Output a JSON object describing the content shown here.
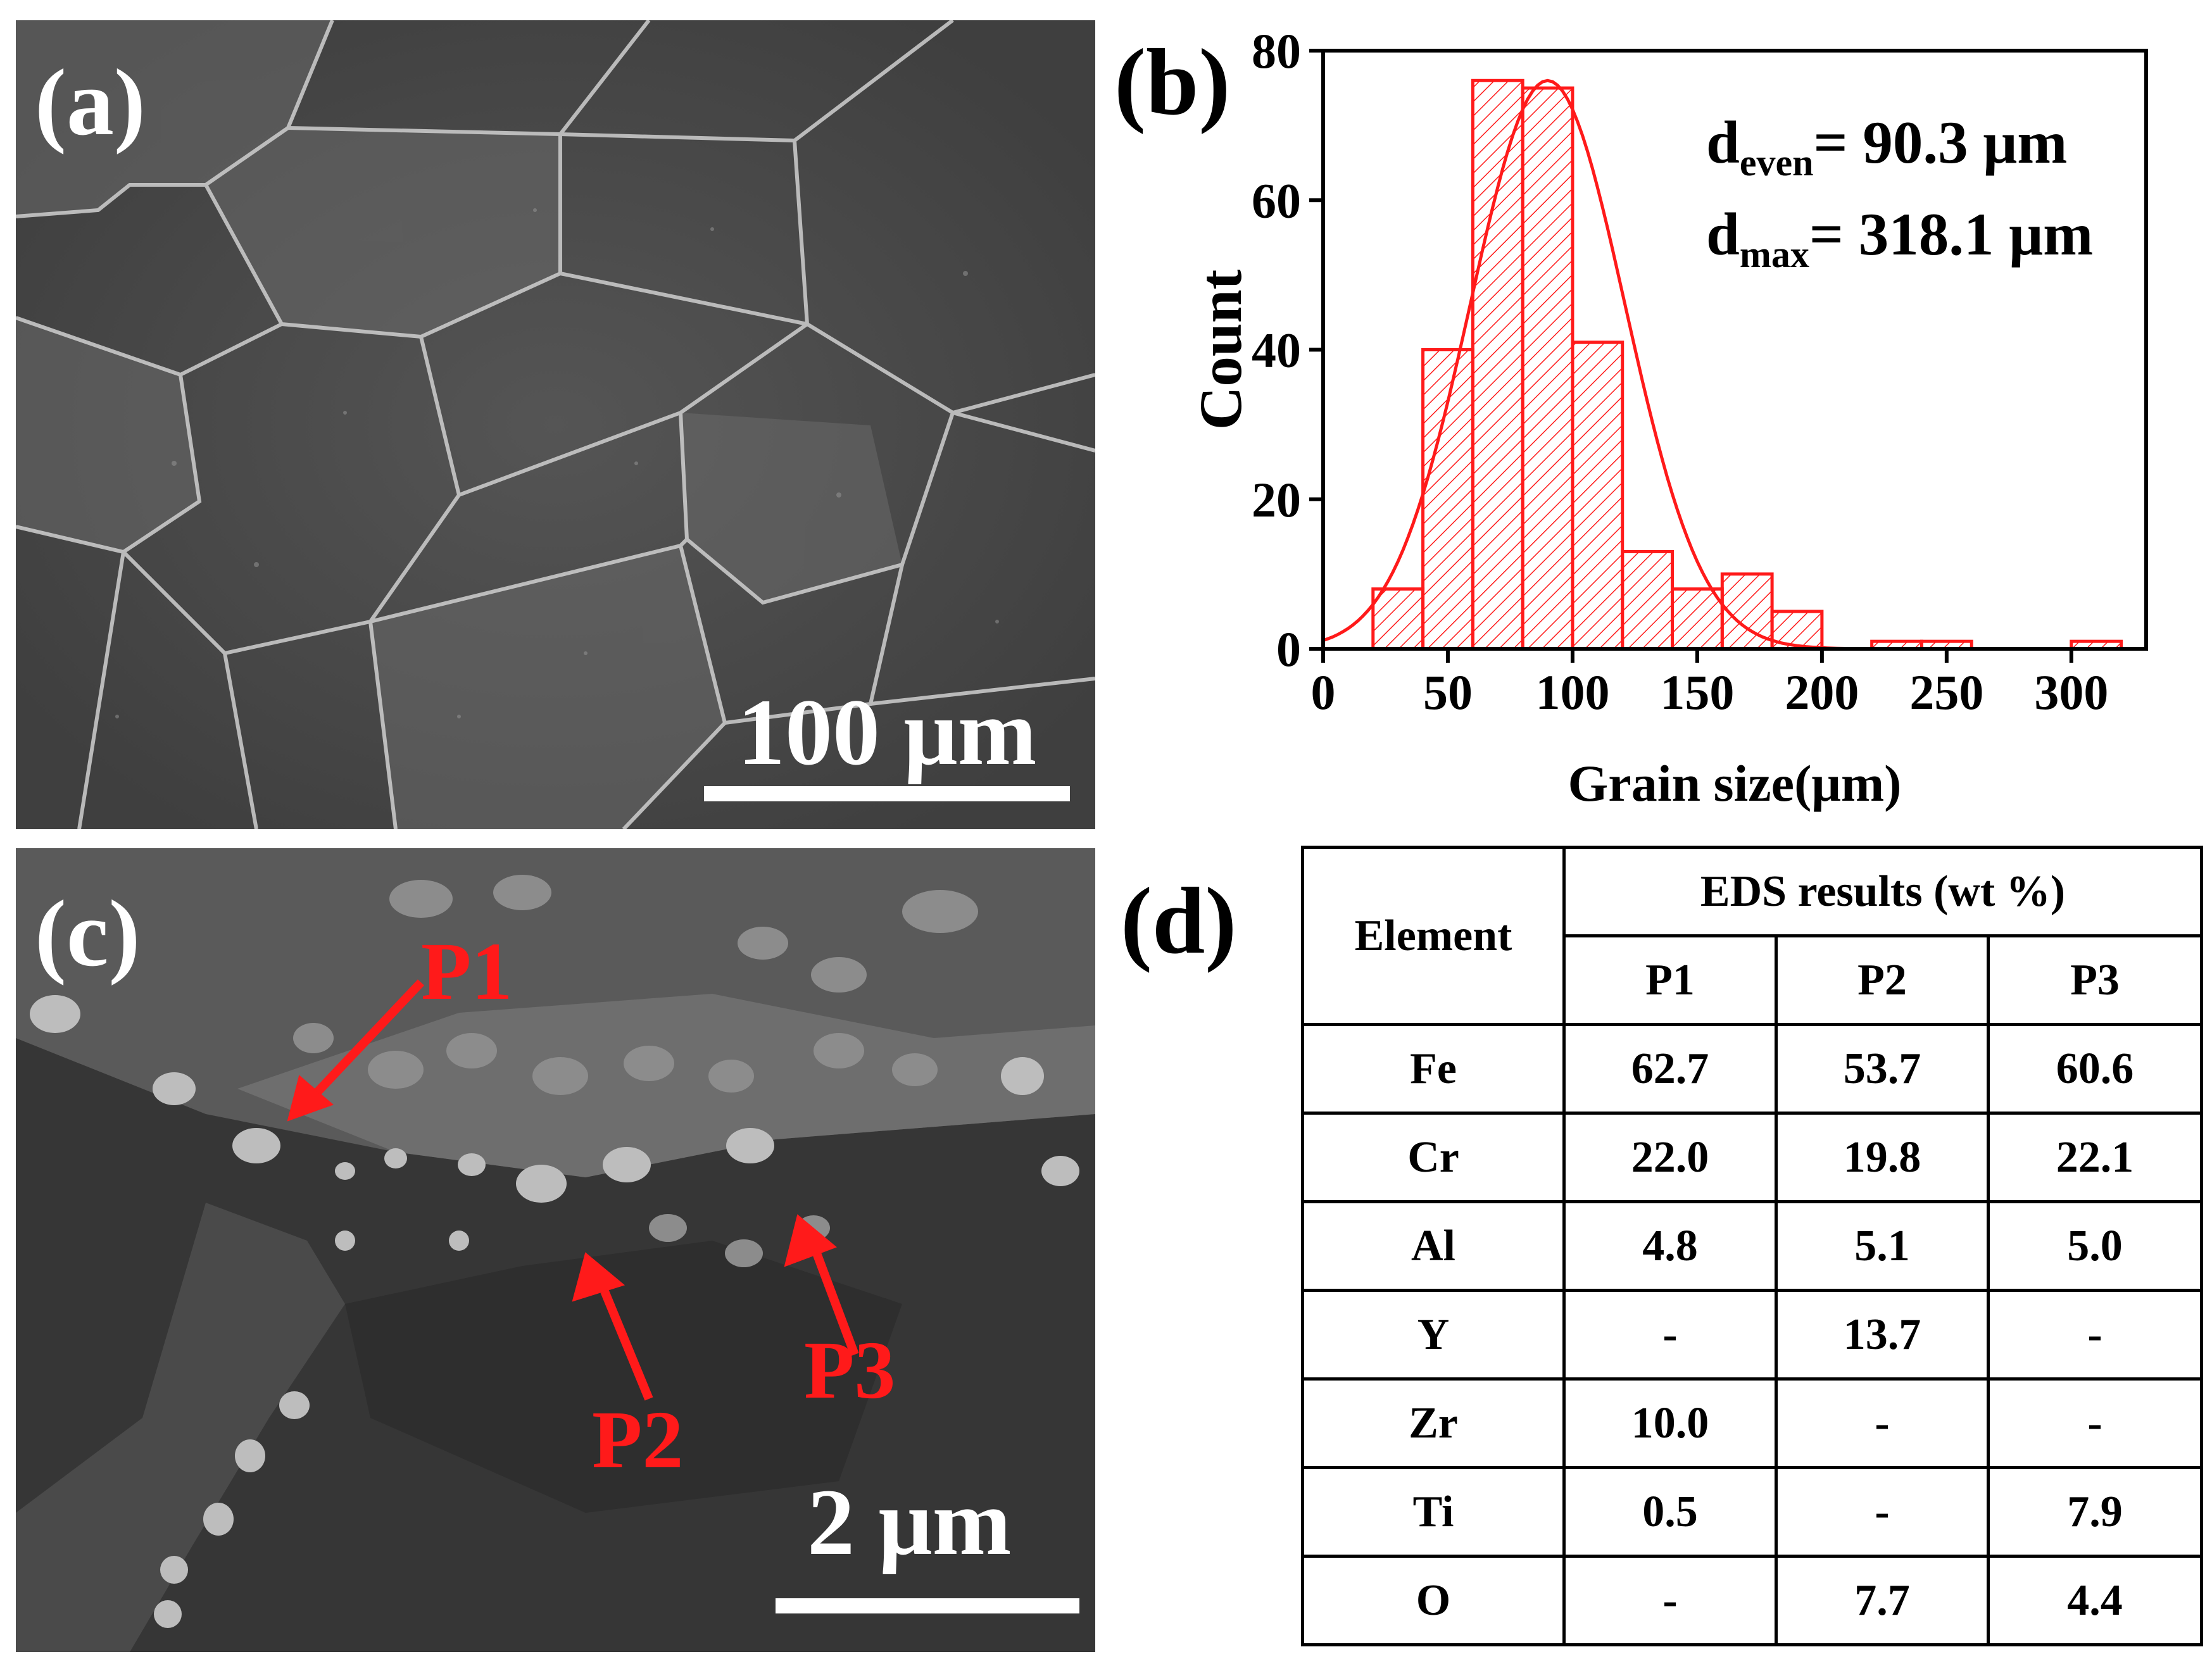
{
  "panels": {
    "a": {
      "label": "(a)",
      "scale_label": "100 μm"
    },
    "b": {
      "label": "(b)"
    },
    "c": {
      "label": "(c)",
      "scale_label": "2 μm",
      "markers": [
        "P1",
        "P2",
        "P3"
      ]
    },
    "d": {
      "label": "(d)"
    }
  },
  "annotation": {
    "d_even_base": "d",
    "d_even_sub": "even",
    "d_even_value": "= 90.3 μm",
    "d_max_base": "d",
    "d_max_sub": "max",
    "d_max_value": "= 318.1 μm"
  },
  "chart_data": {
    "type": "bar",
    "xlabel": "Grain size(μm)",
    "ylabel": "Count",
    "xlim": [
      0,
      330
    ],
    "ylim": [
      0,
      80
    ],
    "xticks": [
      0,
      50,
      100,
      150,
      200,
      250,
      300
    ],
    "yticks": [
      0,
      20,
      40,
      60,
      80
    ],
    "bins": [
      {
        "x0": 20,
        "x1": 40,
        "count": 8
      },
      {
        "x0": 40,
        "x1": 60,
        "count": 40
      },
      {
        "x0": 60,
        "x1": 80,
        "count": 76
      },
      {
        "x0": 80,
        "x1": 100,
        "count": 75
      },
      {
        "x0": 100,
        "x1": 120,
        "count": 41
      },
      {
        "x0": 120,
        "x1": 140,
        "count": 13
      },
      {
        "x0": 140,
        "x1": 160,
        "count": 8
      },
      {
        "x0": 160,
        "x1": 180,
        "count": 10
      },
      {
        "x0": 180,
        "x1": 200,
        "count": 5
      },
      {
        "x0": 220,
        "x1": 240,
        "count": 1
      },
      {
        "x0": 240,
        "x1": 260,
        "count": 1
      },
      {
        "x0": 300,
        "x1": 320,
        "count": 1
      }
    ],
    "fit": {
      "type": "gaussian",
      "mean": 90,
      "sigma": 31,
      "peak": 76
    },
    "colors": {
      "series": "#ff1a1a",
      "axis": "#000000"
    }
  },
  "table": {
    "header_element": "Element",
    "header_group": "EDS results (wt %)",
    "columns": [
      "P1",
      "P2",
      "P3"
    ],
    "rows": [
      {
        "element": "Fe",
        "values": [
          "62.7",
          "53.7",
          "60.6"
        ]
      },
      {
        "element": "Cr",
        "values": [
          "22.0",
          "19.8",
          "22.1"
        ]
      },
      {
        "element": "Al",
        "values": [
          "4.8",
          "5.1",
          "5.0"
        ]
      },
      {
        "element": "Y",
        "values": [
          "-",
          "13.7",
          "-"
        ]
      },
      {
        "element": "Zr",
        "values": [
          "10.0",
          "-",
          "-"
        ]
      },
      {
        "element": "Ti",
        "values": [
          "0.5",
          "-",
          "7.9"
        ]
      },
      {
        "element": "O",
        "values": [
          "-",
          "7.7",
          "4.4"
        ]
      }
    ]
  }
}
